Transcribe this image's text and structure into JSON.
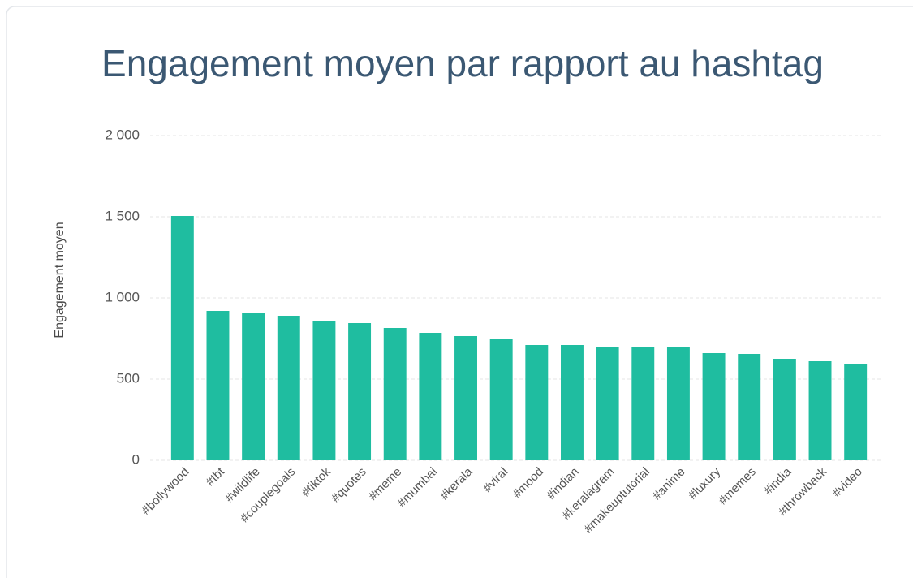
{
  "chart_data": {
    "type": "bar",
    "title": "Engagement moyen par rapport au hashtag",
    "y_label": "Engagement moyen",
    "categories": [
      "#bollywood",
      "#tbt",
      "#wildlife",
      "#couplegoals",
      "#tiktok",
      "#quotes",
      "#meme",
      "#mumbai",
      "#kerala",
      "#viral",
      "#mood",
      "#indian",
      "#keralagram",
      "#makeuptutorial",
      "#anime",
      "#luxury",
      "#memes",
      "#india",
      "#throwback",
      "#video"
    ],
    "values": [
      1505,
      920,
      905,
      890,
      860,
      845,
      815,
      785,
      765,
      750,
      710,
      710,
      700,
      695,
      695,
      660,
      655,
      625,
      610,
      595
    ],
    "color": "#1fbda0",
    "ylim": [
      0,
      2000
    ],
    "yticks": [
      0,
      500,
      {
        "value": 1000,
        "label": "1 000"
      },
      {
        "value": 1500,
        "label": "1 500"
      },
      {
        "value": 2000,
        "label": "2 000"
      }
    ],
    "grid": true
  }
}
